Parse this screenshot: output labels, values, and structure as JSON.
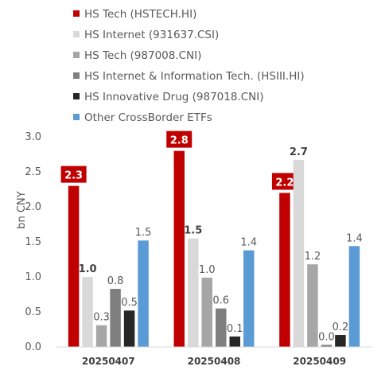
{
  "chart_data": {
    "type": "bar",
    "ylabel": "bn CNY",
    "ylim": [
      0,
      3.0
    ],
    "yticks": [
      "0.0",
      "0.5",
      "1.0",
      "1.5",
      "2.0",
      "2.5",
      "3.0"
    ],
    "categories": [
      "20250407",
      "20250408",
      "20250409"
    ],
    "legend_position": "top",
    "series": [
      {
        "name": "HS Tech (HSTECH.HI)",
        "color": "#C00000",
        "values": [
          2.3,
          2.8,
          2.2
        ],
        "labels": [
          "2.3",
          "2.8",
          "2.2"
        ],
        "label_style": "badge"
      },
      {
        "name": "HS Internet (931637.CSI)",
        "color": "#D9D9D9",
        "values": [
          1.0,
          1.55,
          2.67
        ],
        "labels": [
          "1.0",
          "1.5",
          "2.7"
        ],
        "label_style": "bold"
      },
      {
        "name": "HS Tech (987008.CNI)",
        "color": "#A6A6A6",
        "values": [
          0.31,
          0.99,
          1.18
        ],
        "labels": [
          "0.3",
          "1.0",
          "1.2"
        ],
        "label_style": "normal"
      },
      {
        "name": "HS Internet & Information Tech. (HSIII.HI)",
        "color": "#7F7F7F",
        "values": [
          0.83,
          0.55,
          0.03
        ],
        "labels": [
          "0.8",
          "0.6",
          "0.0"
        ],
        "label_style": "normal"
      },
      {
        "name": "HS Innovative Drug (987018.CNI)",
        "color": "#262626",
        "values": [
          0.52,
          0.15,
          0.17
        ],
        "labels": [
          "0.5",
          "0.1",
          "0.2"
        ],
        "label_style": "normal"
      },
      {
        "name": "Other CrossBorder ETFs",
        "color": "#5B9BD5",
        "values": [
          1.52,
          1.38,
          1.44
        ],
        "labels": [
          "1.5",
          "1.4",
          "1.4"
        ],
        "label_style": "normal"
      }
    ]
  }
}
